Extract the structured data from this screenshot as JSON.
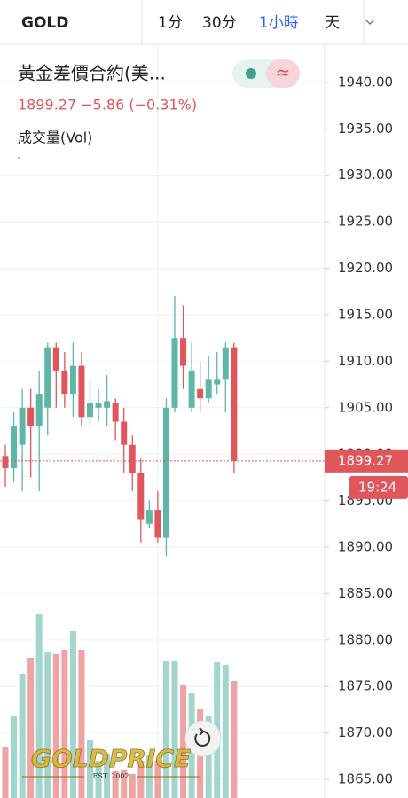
{
  "toolbar": {
    "symbol": "GOLD",
    "intervals": [
      "1分",
      "30分",
      "1小時",
      "天"
    ],
    "active_interval": 2
  },
  "chart_data": {
    "type": "candlestick",
    "title": "黃金差價合約(美...",
    "quote_line": "1899.27 −5.86 (−0.31%)",
    "volume_label": "成交量(Vol)",
    "open": [
      1899.8,
      1898.5,
      1901,
      1905,
      1903,
      1905,
      1911.5,
      1909,
      1906.5,
      1909.5,
      1904,
      1905,
      1905,
      1905.5,
      1903.5,
      1901,
      1898,
      1892.5,
      1894,
      1891,
      1905,
      1912.5,
      1905,
      1907,
      1906,
      1907.5,
      1908,
      1911.5
    ],
    "high": [
      1901,
      1904.5,
      1907,
      1907,
      1909,
      1912,
      1912,
      1911,
      1912,
      1911,
      1908,
      1907,
      1908.5,
      1906,
      1905,
      1902,
      1899.5,
      1895,
      1896,
      1906,
      1917,
      1916,
      1912,
      1910,
      1910.5,
      1911,
      1912,
      1912
    ],
    "low": [
      1896.5,
      1897,
      1896,
      1897.5,
      1896,
      1902,
      1905,
      1905,
      1904,
      1903,
      1903,
      1903.5,
      1903,
      1901.5,
      1898,
      1896,
      1890.5,
      1892,
      1890.5,
      1889,
      1904.5,
      1907,
      1904.5,
      1904.5,
      1905.5,
      1906.5,
      1904.5,
      1898
    ],
    "close": [
      1898.5,
      1903,
      1905,
      1903,
      1906.5,
      1911.5,
      1909,
      1906.5,
      1909.5,
      1904,
      1905.5,
      1905.5,
      1905.7,
      1903.5,
      1901,
      1898,
      1893,
      1894,
      1891,
      1905,
      1912.5,
      1909.5,
      1909,
      1906,
      1908,
      1908,
      1911.5,
      1899.27
    ],
    "volume": [
      57,
      92,
      140,
      158,
      208,
      165,
      162,
      167,
      188,
      167,
      65,
      42,
      50,
      30,
      32,
      27,
      42,
      48,
      42,
      155,
      155,
      127,
      118,
      100,
      92,
      153,
      150,
      132
    ],
    "up_color": "#5eb7a6",
    "down_color": "#e0575b",
    "up_volume_color": "#a2d5cc",
    "down_volume_color": "#f0a3a3",
    "ylim": [
      1863,
      1944
    ],
    "yticks": [
      {
        "value": 1865,
        "label": "1865.00"
      },
      {
        "value": 1870,
        "label": "1870.00"
      },
      {
        "value": 1875,
        "label": "1875.00"
      },
      {
        "value": 1880,
        "label": "1880.00"
      },
      {
        "value": 1885,
        "label": "1885.00"
      },
      {
        "value": 1890,
        "label": "1890.00"
      },
      {
        "value": 1895,
        "label": "1895.00"
      },
      {
        "value": 1900,
        "label": "1900.00"
      },
      {
        "value": 1905,
        "label": "1905.00"
      },
      {
        "value": 1910,
        "label": "1910.00"
      },
      {
        "value": 1915,
        "label": "1915.00"
      },
      {
        "value": 1920,
        "label": "1920.00"
      },
      {
        "value": 1925,
        "label": "1925.00"
      },
      {
        "value": 1930,
        "label": "1930.00"
      },
      {
        "value": 1935,
        "label": "1935.00"
      },
      {
        "value": 1940,
        "label": "1940.00"
      }
    ],
    "grid": true,
    "last_price": 1899.27,
    "countdown": "19:24"
  },
  "watermark": {
    "brand": "GOLDPRICE",
    "est": "EST. 2002"
  }
}
